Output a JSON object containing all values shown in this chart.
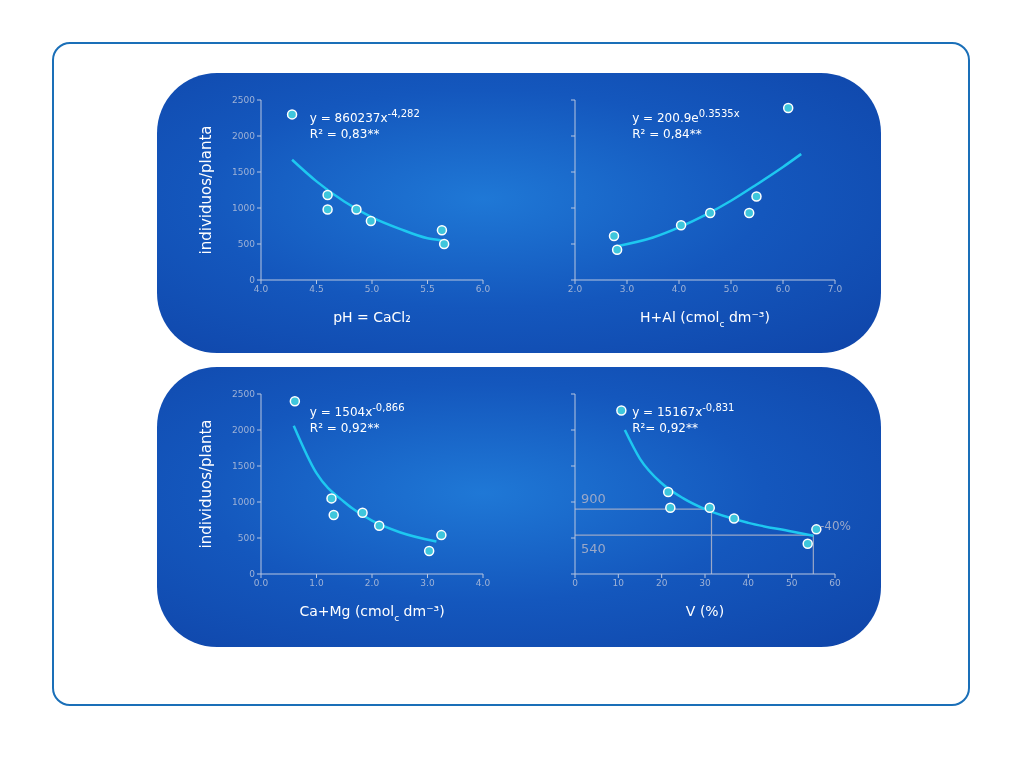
{
  "chart_data": [
    {
      "type": "scatter",
      "ylabel": "individuos/planta",
      "xlabel": "pH = CaCl₂",
      "annotations": [
        "y = 860237x$^{-4,282}$",
        "R² = 0,83**"
      ],
      "marker": "circle",
      "xlim": [
        4.0,
        6.0
      ],
      "xticks": [
        {
          "value": 4.0,
          "label": "4.0"
        },
        4.5,
        {
          "value": 5.0,
          "label": "5.0"
        },
        5.5,
        {
          "value": 6.0,
          "label": "6.0"
        }
      ],
      "ylim": [
        0,
        2500
      ],
      "yticks": [
        0,
        500,
        1000,
        1500,
        2000,
        2500
      ],
      "series": [
        {
          "color": "#3ec6dc",
          "x": [
            4.28,
            4.6,
            4.6,
            4.86,
            4.99,
            5.63,
            5.65
          ],
          "values": [
            2300,
            1180,
            980,
            980,
            820,
            690,
            500
          ]
        },
        {
          "type": "line",
          "marker": "none",
          "color": "#1ec8f0",
          "x": [
            4.28,
            4.5,
            4.75,
            5.0,
            5.25,
            5.5,
            5.63
          ],
          "values": [
            1670,
            1370,
            1090,
            870,
            710,
            580,
            550
          ]
        }
      ]
    },
    {
      "type": "scatter",
      "xlabel": "H+Al (cmol$_{c}$ dm⁻³)",
      "annotations": [
        "y = 200.9e$^{0.3535x}$",
        "R² = 0,84**"
      ],
      "marker": "circle",
      "tick_labels": "x",
      "xlim": [
        2.0,
        7.0
      ],
      "xticks": [
        {
          "value": 2.0,
          "label": "2.0"
        },
        {
          "value": 3.0,
          "label": "3.0"
        },
        {
          "value": 4.0,
          "label": "4.0"
        },
        {
          "value": 5.0,
          "label": "5.0"
        },
        {
          "value": 6.0,
          "label": "6.0"
        },
        {
          "value": 7.0,
          "label": "7.0"
        }
      ],
      "ylim": [
        0,
        2500
      ],
      "yticks": [
        {
          "value": 0,
          "label": null
        },
        {
          "value": 500,
          "label": null
        },
        {
          "value": 1000,
          "label": null
        },
        {
          "value": 1500,
          "label": null
        },
        {
          "value": 2000,
          "label": null
        },
        {
          "value": 2500,
          "label": null
        }
      ],
      "series": [
        {
          "color": "#3ec6dc",
          "x": [
            2.75,
            2.81,
            4.04,
            4.6,
            5.35,
            5.49,
            6.1
          ],
          "values": [
            610,
            420,
            760,
            930,
            930,
            1160,
            2390
          ]
        },
        {
          "type": "line",
          "marker": "none",
          "color": "#1ec8f0",
          "x": [
            2.81,
            3.5,
            4.0,
            4.5,
            5.0,
            5.5,
            6.0,
            6.35
          ],
          "values": [
            470,
            590,
            730,
            900,
            1100,
            1330,
            1570,
            1750
          ]
        }
      ]
    },
    {
      "type": "scatter",
      "ylabel": "individuos/planta",
      "xlabel": "Ca+Mg (cmol$_{c}$ dm⁻³)",
      "annotations": [
        "y = 1504x$^{-0,866}$",
        "R² = 0,92**"
      ],
      "marker": "circle",
      "xlim": [
        0.0,
        4.0
      ],
      "xticks": [
        {
          "value": 0,
          "label": "0.0"
        },
        {
          "value": 1.0,
          "label": "1.0"
        },
        {
          "value": 2.0,
          "label": "2.0"
        },
        {
          "value": 3.0,
          "label": "3.0"
        },
        {
          "value": 4.0,
          "label": "4.0"
        }
      ],
      "ylim": [
        0,
        2500
      ],
      "yticks": [
        0,
        500,
        1000,
        1500,
        2000,
        2500
      ],
      "series": [
        {
          "color": "#3ec6dc",
          "x": [
            0.61,
            1.27,
            1.31,
            1.83,
            2.13,
            3.03,
            3.25
          ],
          "values": [
            2400,
            1050,
            820,
            850,
            670,
            320,
            540
          ]
        },
        {
          "type": "line",
          "marker": "none",
          "color": "#1ec8f0",
          "x": [
            0.59,
            1.0,
            1.5,
            2.0,
            2.5,
            3.16
          ],
          "values": [
            2060,
            1400,
            1000,
            740,
            580,
            450
          ]
        }
      ]
    },
    {
      "type": "scatter",
      "xlabel": "V (%)",
      "annotations": [
        "y = 15167x$^{-0,831}$",
        "R²= 0,92**",
        {
          "text": "-40%",
          "x": 57,
          "y": 640
        }
      ],
      "marker": "circle",
      "tick_labels": "x",
      "xlim": [
        0,
        60
      ],
      "xticks": [
        0,
        10,
        20,
        30,
        40,
        50,
        60
      ],
      "ylim": [
        0,
        2500
      ],
      "yticks": [
        {
          "value": 0,
          "label": null
        },
        {
          "value": 500,
          "label": null
        },
        {
          "value": 1000,
          "label": null
        },
        {
          "value": 1500,
          "label": null
        },
        {
          "value": 2000,
          "label": null
        },
        {
          "value": 2500,
          "label": null
        }
      ],
      "ref_lines": [
        {
          "axis": "y",
          "value": 900,
          "label": "900",
          "color": "#9aa8c8"
        },
        {
          "axis": "y",
          "value": 540,
          "label": "540",
          "color": "#9aa8c8"
        },
        {
          "axis": "x",
          "value": 31.5,
          "color": "#9aa8c8"
        },
        {
          "axis": "x",
          "value": 55,
          "color": "#9aa8c8"
        }
      ],
      "series": [
        {
          "color": "#3ec6dc",
          "x": [
            10.7,
            21.5,
            22.0,
            31.1,
            36.7,
            55.7,
            53.7
          ],
          "values": [
            2270,
            1140,
            920,
            920,
            770,
            620,
            420
          ]
        },
        {
          "type": "line",
          "marker": "none",
          "color": "#1ec8f0",
          "x": [
            11.5,
            15,
            20,
            25,
            30,
            40,
            50,
            55
          ],
          "values": [
            2000,
            1600,
            1260,
            1050,
            900,
            710,
            590,
            530
          ]
        }
      ]
    }
  ]
}
